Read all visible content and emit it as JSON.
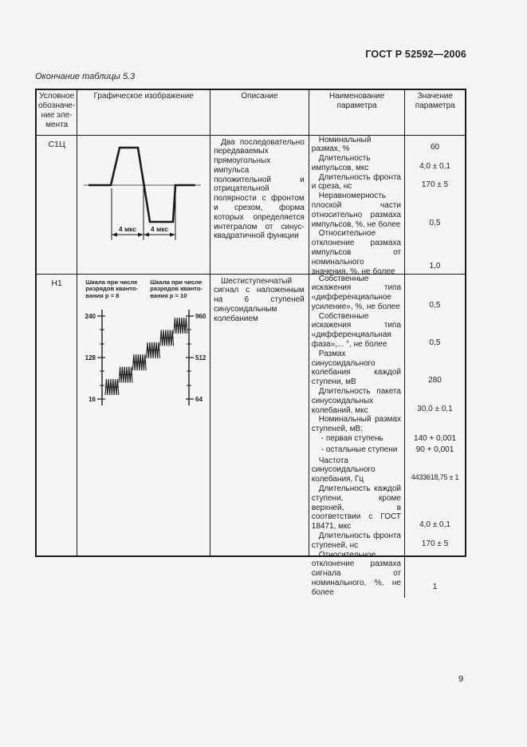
{
  "page": {
    "doc_number": "ГОСТ Р 52592—2006",
    "table_caption": "Окончание таблицы 5.3",
    "page_number": "9"
  },
  "table": {
    "headers": [
      "Условное\nобозначе-\nние эле-\nмента",
      "Графическое изображение",
      "Описание",
      "Наименование\nпараметра",
      "Значение\nпараметра"
    ],
    "rows": [
      {
        "id": "С1Ц",
        "graphic": {
          "dim_labels": [
            "4 мкс",
            "4 мкс"
          ]
        },
        "description": "Два последовательно передаваемых прямоугольных импульса положительной и отрицательной полярности с фронтом и срезом, форма которых определяется интегралом от синус-квадратичной функции",
        "params": [
          {
            "name": "Номинальный размах, %",
            "value": "60"
          },
          {
            "name": "Длительность импульсов, мкс",
            "value": "4,0 ± 0,1"
          },
          {
            "name": "Длительность фронта и среза, нс",
            "value": "170 ± 5"
          },
          {
            "name": "Неравномерность плоской части относительно размаха импульсов, %, не более",
            "value": "0,5"
          },
          {
            "name": "Относительное отклонение размаха импульсов от номинального значения, %, не более",
            "value": "1,0"
          }
        ]
      },
      {
        "id": "Н1",
        "graphic": {
          "left_scale_label": "Шкала при числе\nразрядов кванто-\nвания p = 8",
          "right_scale_label": "Шкала при числе\nразрядов кванто-\nвания p = 10",
          "left_ticks": [
            "240",
            "128",
            "16"
          ],
          "right_ticks": [
            "960",
            "512",
            "64"
          ]
        },
        "description": "Шестиступенчатый сигнал с наложенным на 6 ступеней синусоидальным колебанием",
        "params": [
          {
            "name": "Собственные искажения типа «дифференциальное усиление», %, не более",
            "value": "0,5"
          },
          {
            "name": "Собственные искажения типа «дифференциальная фаза»,... °, не более",
            "value": "0,5"
          },
          {
            "name": "Размах синусоидального колебания каждой ступени, мВ",
            "value": "280"
          },
          {
            "name": "Длительность пакета синусоидальных колебаний, мкс",
            "value": "30,0 ± 0,1"
          },
          {
            "name": "Номинальный размах ступеней, мВ:",
            "value": ""
          },
          {
            "name": "- первая ступень",
            "value": "140 + 0,001"
          },
          {
            "name": "- остальные ступени",
            "value": "90 + 0,001"
          },
          {
            "name": "Частота синусоидального колебания, Гц",
            "value": "4433618,75 ± 1"
          },
          {
            "name": "Длительность каждой ступени, кроме верхней, в соответствии с ГОСТ 18471, мкс",
            "value": "4,0 ± 0,1"
          },
          {
            "name": "Длительность фронта ступеней, нс",
            "value": "170 ± 5"
          },
          {
            "name": "Относительное отклонение размаха сигнала от номинального, %, не более",
            "value": "1"
          }
        ]
      }
    ]
  }
}
